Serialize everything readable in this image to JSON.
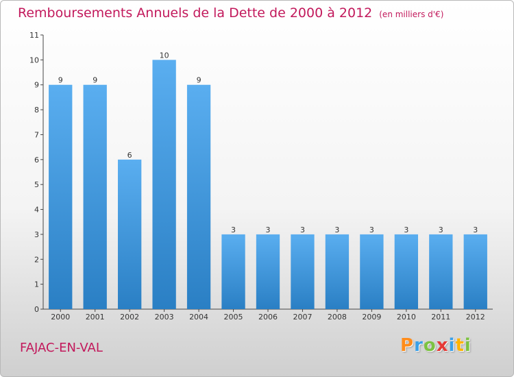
{
  "header": {
    "title": "Remboursements Annuels de la Dette de 2000 à 2012",
    "unit": "(en milliers d'€)"
  },
  "footer": {
    "town": "FAJAC-EN-VAL",
    "logo": [
      "P",
      "r",
      "o",
      "x",
      "i",
      "t",
      "i"
    ],
    "logo_colors": [
      "#ff8c1a",
      "#3aa0e8",
      "#7cc242",
      "#e53935",
      "#3aa0e8",
      "#ffb300",
      "#7cc242"
    ]
  },
  "chart_data": {
    "type": "bar",
    "categories": [
      "2000",
      "2001",
      "2002",
      "2003",
      "2004",
      "2005",
      "2006",
      "2007",
      "2008",
      "2009",
      "2010",
      "2011",
      "2012"
    ],
    "values": [
      9,
      9,
      6,
      10,
      9,
      3,
      3,
      3,
      3,
      3,
      3,
      3,
      3
    ],
    "data_labels": [
      "9",
      "9",
      "6",
      "10",
      "9",
      "3",
      "3",
      "3",
      "3",
      "3",
      "3",
      "3",
      "3"
    ],
    "yticks": [
      0,
      1,
      2,
      3,
      4,
      5,
      6,
      7,
      8,
      9,
      10,
      11
    ],
    "ylim": [
      0,
      11
    ],
    "grid": false,
    "bar_color": "#3f97dc"
  }
}
